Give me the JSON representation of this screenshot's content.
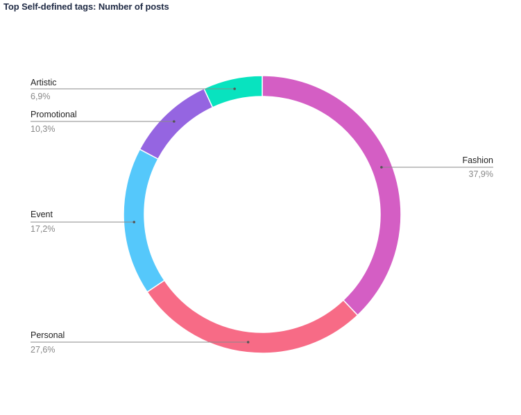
{
  "chart_data": {
    "type": "pie",
    "title": "Top Self-defined tags: Number of posts",
    "slices": [
      {
        "name": "Fashion",
        "percent_label": "37,9%",
        "value": 37.9,
        "color": "#d45ec4"
      },
      {
        "name": "Personal",
        "percent_label": "27,6%",
        "value": 27.6,
        "color": "#f76b86"
      },
      {
        "name": "Event",
        "percent_label": "17,2%",
        "value": 17.2,
        "color": "#55c8fb"
      },
      {
        "name": "Promotional",
        "percent_label": "10,3%",
        "value": 10.3,
        "color": "#9565e1"
      },
      {
        "name": "Artistic",
        "percent_label": "6,9%",
        "value": 6.9,
        "color": "#08e3bf"
      }
    ],
    "donut": true,
    "start_angle": "12 o'clock",
    "direction": "clockwise"
  }
}
